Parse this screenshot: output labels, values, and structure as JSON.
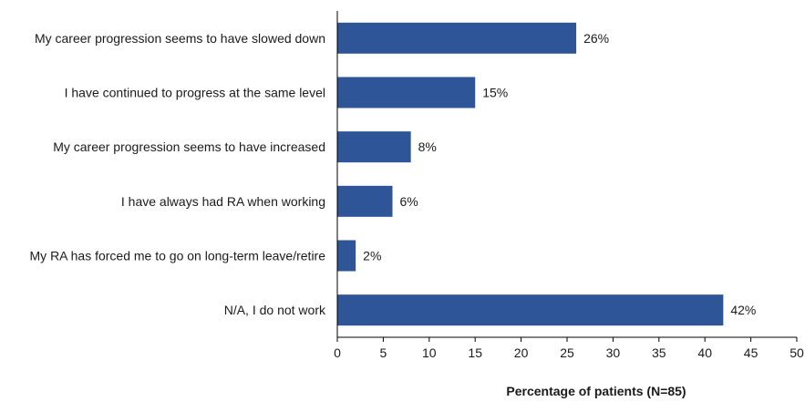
{
  "chart_data": {
    "type": "bar",
    "orientation": "horizontal",
    "categories": [
      "My career progression seems to have slowed down",
      "I have continued to progress at the same level",
      "My career progression seems to have increased",
      "I have always had RA when working",
      "My RA has forced me to go on long-term leave/retire",
      "N/A, I do not work"
    ],
    "values": [
      26,
      15,
      8,
      6,
      2,
      42
    ],
    "data_labels": [
      "26%",
      "15%",
      "8%",
      "6%",
      "2%",
      "42%"
    ],
    "xlabel": "Percentage of patients (N=85)",
    "ylabel": "",
    "xlim": [
      0,
      50
    ],
    "xticks": [
      0,
      5,
      10,
      15,
      20,
      25,
      30,
      35,
      40,
      45,
      50
    ],
    "grid": false,
    "bar_color": "#2e5597"
  }
}
